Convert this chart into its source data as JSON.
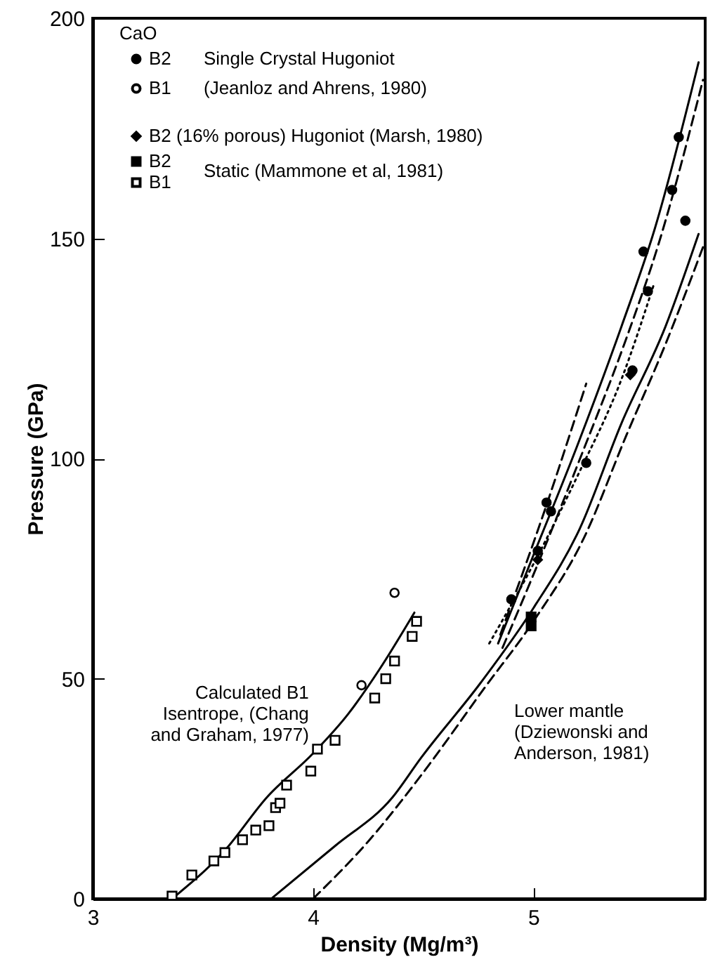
{
  "chart_data": {
    "type": "scatter",
    "xlabel": "Density (Mg/m³)",
    "ylabel": "Pressure (GPa)",
    "legend_title": "CaO",
    "xlim": [
      3,
      5.78
    ],
    "ylim": [
      0,
      200
    ],
    "xticks": [
      3,
      4,
      5
    ],
    "yticks": [
      0,
      50,
      100,
      150,
      200
    ],
    "grid": false,
    "legend": "top left",
    "annotations": [
      "Single Crystal Hugoniot",
      "(Jeanloz and Ahrens, 1980)",
      "Static (Mammone et al, 1981)",
      {
        "text": "Calculated B1\nIsentrope, (Chang\nand Graham, 1977)",
        "x": 4.16,
        "y": 42
      },
      {
        "text": "Lower mantle\n(Dziewonski and\nAnderson, 1981)",
        "x": 4.76,
        "y": 49
      }
    ],
    "series": [
      {
        "name": "B2",
        "type": "scatter",
        "marker": "circle",
        "color": "#000000",
        "x": [
          5.66,
          5.63,
          5.69,
          5.5,
          5.52,
          5.45,
          5.24,
          5.06,
          5.08,
          5.02,
          4.9
        ],
        "values": [
          173,
          161,
          154,
          147,
          138,
          120,
          99,
          90,
          88,
          79,
          68
        ]
      },
      {
        "name": "B1",
        "type": "scatter",
        "marker": "circle",
        "color": "#000000",
        "x": [
          4.22,
          4.37
        ],
        "values": [
          48.5,
          69.5
        ]
      },
      {
        "name": "B2 (16% porous) Hugoniot (Marsh, 1980)",
        "type": "scatter",
        "marker": "diamond",
        "color": "#000000",
        "x": [
          5.02,
          5.44
        ],
        "values": [
          77,
          119
        ]
      },
      {
        "name": "B2",
        "type": "scatter",
        "marker": "square",
        "color": "#000000",
        "x": [
          4.99,
          4.99
        ],
        "values": [
          64,
          62
        ]
      },
      {
        "name": "B1",
        "type": "scatter",
        "marker": "square",
        "color": "#000000",
        "x": [
          3.36,
          3.45,
          3.55,
          3.6,
          3.68,
          3.74,
          3.8,
          3.83,
          3.85,
          3.88,
          3.99,
          4.02,
          4.1,
          4.28,
          4.33,
          4.37,
          4.45,
          4.47
        ],
        "values": [
          0.6,
          5.4,
          8.6,
          10.5,
          13.4,
          15.6,
          16.6,
          20.7,
          21.7,
          25.8,
          29,
          34,
          36,
          45.6,
          50,
          54,
          59.6,
          63
        ]
      },
      {
        "type": "line",
        "marker": "none",
        "line_style": "solid",
        "color": "#000000",
        "x": [
          3.36,
          3.6,
          3.79,
          4.0,
          4.16,
          4.3,
          4.46
        ],
        "values": [
          0,
          11,
          23,
          33,
          42,
          52,
          65
        ]
      },
      {
        "type": "line",
        "marker": "none",
        "line_style": "solid",
        "color": "#000000",
        "x": [
          3.81,
          4.1,
          4.36,
          4.49,
          4.76,
          5.0,
          5.21,
          5.4,
          5.6,
          5.75
        ],
        "values": [
          0,
          12,
          23,
          32,
          49,
          66,
          84,
          108,
          130,
          151
        ]
      },
      {
        "type": "line",
        "marker": "none",
        "line_style": "dashed",
        "color": "#000000",
        "x": [
          4.0,
          4.25,
          4.49,
          4.78,
          5.0,
          5.23,
          5.42,
          5.6,
          5.77
        ],
        "values": [
          0,
          13,
          28,
          48,
          63,
          82,
          105,
          126,
          148
        ]
      },
      {
        "type": "line",
        "marker": "none",
        "line_style": "solid",
        "color": "#000000",
        "x": [
          4.84,
          5.0,
          5.2,
          5.4,
          5.55,
          5.75
        ],
        "values": [
          58,
          78,
          103,
          130,
          152,
          190
        ]
      },
      {
        "type": "line",
        "marker": "none",
        "line_style": "dashed",
        "color": "#000000",
        "x": [
          4.86,
          5.02,
          5.22,
          5.42,
          5.57,
          5.77
        ],
        "values": [
          57,
          76,
          101,
          127,
          149,
          186
        ]
      },
      {
        "type": "line",
        "marker": "none",
        "line_style": "dotted",
        "color": "#000000",
        "x": [
          4.8,
          5.0,
          5.2,
          5.4,
          5.55
        ],
        "values": [
          58,
          76,
          96,
          118,
          140
        ]
      },
      {
        "type": "line",
        "marker": "none",
        "line_style": "dashed",
        "color": "#000000",
        "x": [
          4.85,
          5.05,
          5.24
        ],
        "values": [
          60,
          88,
          117
        ]
      }
    ]
  }
}
